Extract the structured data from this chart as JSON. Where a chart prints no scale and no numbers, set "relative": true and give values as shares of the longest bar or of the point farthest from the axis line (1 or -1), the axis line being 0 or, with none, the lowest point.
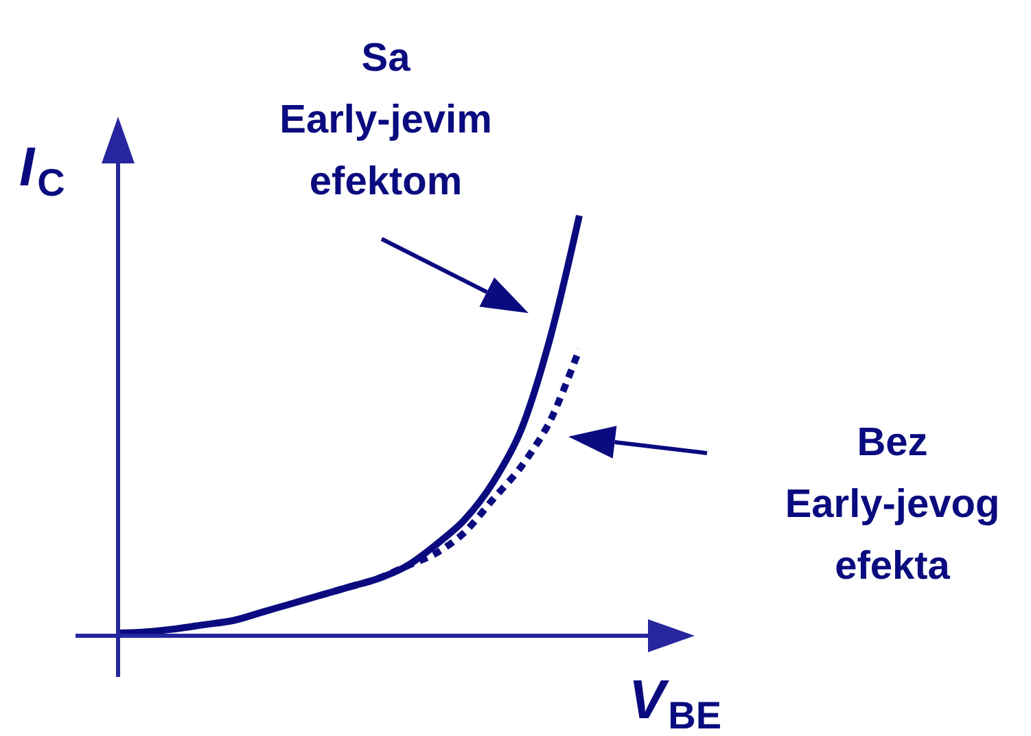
{
  "chart_data": {
    "type": "line",
    "relative": true,
    "xlabel": "V$_{BE}$",
    "ylabel": "I$_{C}$",
    "categories": [
      null,
      null,
      null,
      null,
      null,
      null,
      null,
      null,
      null,
      null,
      null,
      null,
      null,
      null,
      null,
      null,
      null,
      null,
      null,
      null,
      null
    ],
    "series": [
      {
        "color": "#0b0b80",
        "line_style": "solid",
        "values": [
          0,
          0.003,
          0.01,
          0.02,
          0.03,
          0.05,
          0.07,
          0.09,
          0.11,
          0.13,
          0.16,
          0.21,
          0.27,
          0.36,
          0.49,
          0.71,
          1,
          null,
          null,
          null,
          null
        ]
      },
      {
        "color": "#0b0b80",
        "line_style": "dashed",
        "values": [
          null,
          null,
          null,
          null,
          null,
          null,
          null,
          0.09,
          0.11,
          0.13,
          0.16,
          0.19,
          0.24,
          0.32,
          0.4,
          0.51,
          0.68,
          null,
          null,
          null,
          null
        ]
      }
    ],
    "annotations": [
      "Sa\nEarly-jevim\nefektom",
      "Bez\nEarly-jevog\nefekta"
    ],
    "grid": false,
    "marker": "none"
  }
}
